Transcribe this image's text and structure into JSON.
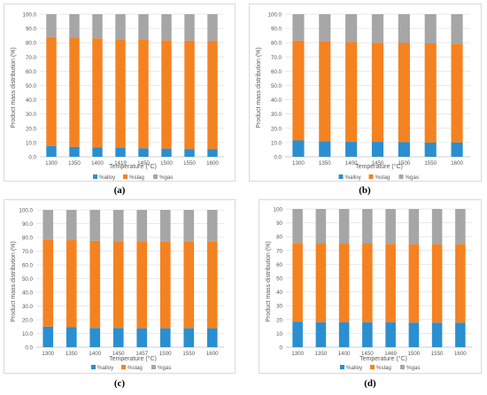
{
  "colors": {
    "alloy": "#2a8fd0",
    "slag": "#f58220",
    "gas": "#a6a6a6",
    "grid": "#e3e3e3",
    "axis": "#bfbfbf",
    "text": "#595959"
  },
  "chart_data": [
    {
      "type": "bar",
      "stacked": true,
      "panel_label": "(a)",
      "categories": [
        "1300",
        "1350",
        "1400",
        "1419",
        "1450",
        "1500",
        "1550",
        "1600"
      ],
      "series": [
        {
          "name": "%alloy",
          "values": [
            7.5,
            7.0,
            6.5,
            6.2,
            6.0,
            5.8,
            5.5,
            5.3
          ]
        },
        {
          "name": "%slag",
          "values": [
            76.5,
            76.5,
            76.5,
            76.3,
            76.0,
            76.0,
            76.0,
            76.0
          ]
        },
        {
          "name": "%gas",
          "values": [
            16.0,
            16.5,
            17.0,
            17.5,
            18.0,
            18.2,
            18.5,
            18.7
          ]
        }
      ],
      "title": "",
      "xlabel": "Temperature (°C)",
      "ylabel": "Product mass distribution (%)",
      "ylim": [
        0,
        100
      ],
      "yticks": [
        "0.0",
        "10.0",
        "20.0",
        "30.0",
        "40.0",
        "50.0",
        "60.0",
        "70.0",
        "80.0",
        "90.0",
        "100.0"
      ],
      "grid": true,
      "legend_position": "bottom"
    },
    {
      "type": "bar",
      "stacked": true,
      "panel_label": "(b)",
      "categories": [
        "1300",
        "1350",
        "1400",
        "1450",
        "1500",
        "1550",
        "1600"
      ],
      "series": [
        {
          "name": "%alloy",
          "values": [
            11.5,
            11.0,
            10.5,
            10.5,
            10.3,
            10.0,
            10.0
          ]
        },
        {
          "name": "%slag",
          "values": [
            70.0,
            70.0,
            70.0,
            69.5,
            69.5,
            69.5,
            69.3
          ]
        },
        {
          "name": "%gas",
          "values": [
            18.5,
            19.0,
            19.5,
            20.0,
            20.2,
            20.5,
            20.7
          ]
        }
      ],
      "title": "",
      "xlabel": "Temperature (°C)",
      "ylabel": "Product mass distribution (%)",
      "ylim": [
        0,
        100
      ],
      "yticks": [
        "0.0",
        "10.0",
        "20.0",
        "30.0",
        "40.0",
        "50.0",
        "60.0",
        "70.0",
        "80.0",
        "90.0",
        "100.0"
      ],
      "grid": true,
      "legend_position": "bottom"
    },
    {
      "type": "bar",
      "stacked": true,
      "panel_label": "(c)",
      "categories": [
        "1300",
        "1350",
        "1400",
        "1450",
        "1457",
        "1500",
        "1550",
        "1600"
      ],
      "series": [
        {
          "name": "%alloy",
          "values": [
            15.0,
            14.5,
            14.0,
            14.0,
            13.8,
            13.8,
            13.8,
            13.8
          ]
        },
        {
          "name": "%slag",
          "values": [
            63.5,
            63.5,
            63.5,
            63.3,
            63.4,
            63.2,
            63.2,
            63.2
          ]
        },
        {
          "name": "%gas",
          "values": [
            21.5,
            22.0,
            22.5,
            22.7,
            22.8,
            23.0,
            23.0,
            23.0
          ]
        }
      ],
      "title": "",
      "xlabel": "Temperature (°C)",
      "ylabel": "Product mass distribution (%)",
      "ylim": [
        0,
        100
      ],
      "yticks": [
        "0.0",
        "10.0",
        "20.0",
        "30.0",
        "40.0",
        "50.0",
        "60.0",
        "70.0",
        "80.0",
        "90.0",
        "100.0"
      ],
      "grid": true,
      "legend_position": "bottom"
    },
    {
      "type": "bar",
      "stacked": true,
      "panel_label": "(d)",
      "categories": [
        "1300",
        "1350",
        "1400",
        "1450",
        "1469",
        "1500",
        "1550",
        "1600"
      ],
      "series": [
        {
          "name": "%alloy",
          "values": [
            18.5,
            18.0,
            18.0,
            18.0,
            18.0,
            17.8,
            17.8,
            17.8
          ]
        },
        {
          "name": "%slag",
          "values": [
            57.0,
            57.0,
            57.0,
            57.0,
            56.8,
            56.8,
            56.8,
            56.8
          ]
        },
        {
          "name": "%gas",
          "values": [
            24.5,
            25.0,
            25.0,
            25.0,
            25.2,
            25.4,
            25.4,
            25.4
          ]
        }
      ],
      "title": "",
      "xlabel": "Temperature (°C)",
      "ylabel": "Product mass distribution (%)",
      "ylim": [
        0,
        100
      ],
      "yticks": [
        "0",
        "10",
        "20",
        "30",
        "40",
        "50",
        "60",
        "70",
        "80",
        "90",
        "100"
      ],
      "grid": true,
      "legend_position": "bottom"
    }
  ]
}
